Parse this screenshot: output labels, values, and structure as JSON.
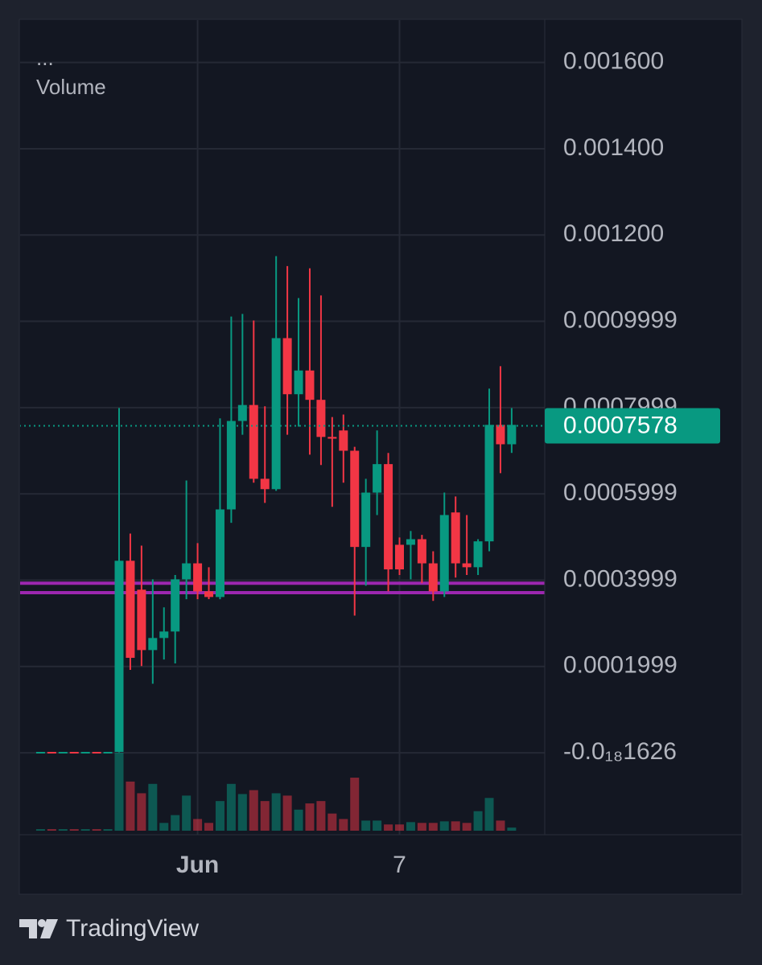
{
  "chart_data": {
    "type": "candlestick",
    "legend_text": "...",
    "volume_name": "Volume",
    "categories": [
      null,
      null,
      null,
      null,
      null,
      null,
      null,
      null,
      null,
      null,
      null,
      null,
      null,
      null,
      "Jun",
      null,
      null,
      null,
      null,
      null,
      null,
      null,
      null,
      null,
      null,
      null,
      null,
      null,
      null,
      null,
      null,
      null,
      "7",
      null,
      null,
      null,
      null,
      null,
      null,
      null,
      null,
      null,
      null
    ],
    "open": [
      1e-06,
      2e-06,
      1e-06,
      2e-06,
      1e-06,
      2e-06,
      1e-06,
      2e-06,
      0.000445,
      0.000378,
      0.000238,
      0.000266,
      0.000281,
      0.000402,
      0.000439,
      0.000374,
      0.000361,
      0.000564,
      0.000769,
      0.000806,
      0.000635,
      0.000611,
      0.000961,
      0.000831,
      0.000886,
      0.000818,
      0.000732,
      0.000747,
      0.0007,
      0.000477,
      0.000603,
      0.000669,
      0.000482,
      0.000482,
      0.000495,
      0.000439,
      0.000374,
      0.000557,
      0.000439,
      0.00043,
      0.00049,
      0.00076,
      0.000715
    ],
    "high": [
      2e-06,
      2e-06,
      2e-06,
      2e-06,
      2e-06,
      2e-06,
      2e-06,
      0.000799,
      0.000508,
      0.00048,
      0.000402,
      0.000337,
      0.000412,
      0.000631,
      0.000486,
      0.00043,
      0.000775,
      0.001011,
      0.001017,
      0.001002,
      0.000803,
      0.001151,
      0.001128,
      0.001054,
      0.001123,
      0.00106,
      0.000778,
      0.000784,
      0.000709,
      0.000635,
      0.000747,
      0.000695,
      0.000499,
      0.000514,
      0.000505,
      0.000467,
      0.000603,
      0.000594,
      0.000551,
      0.000495,
      0.000844,
      0.000896,
      0.000799
    ],
    "low": [
      1e-06,
      1e-06,
      1e-06,
      1e-06,
      1e-06,
      1e-06,
      1e-06,
      1e-06,
      0.000192,
      0.000201,
      0.00016,
      0.000216,
      0.000207,
      0.000356,
      0.000356,
      0.000356,
      0.000356,
      0.000533,
      0.000737,
      0.000626,
      0.000579,
      0.000607,
      0.000737,
      0.000756,
      0.000691,
      0.000667,
      0.00057,
      0.000626,
      0.000318,
      0.000387,
      0.000551,
      0.000374,
      0.000412,
      0.000402,
      0.000393,
      0.000352,
      0.000361,
      0.000406,
      0.000412,
      0.000412,
      0.000467,
      0.000648,
      0.000695
    ],
    "close": [
      2e-06,
      1e-06,
      2e-06,
      1e-06,
      2e-06,
      1e-06,
      2e-06,
      0.000445,
      0.00022,
      0.000238,
      0.000266,
      0.000281,
      0.000402,
      0.000439,
      0.000374,
      0.000361,
      0.000564,
      0.000769,
      0.000806,
      0.000635,
      0.000611,
      0.000961,
      0.000831,
      0.000886,
      0.000818,
      0.000732,
      0.000728,
      0.0007,
      0.000477,
      0.000603,
      0.000669,
      0.000425,
      0.000425,
      0.000495,
      0.000439,
      0.000374,
      0.000551,
      0.000439,
      0.00043,
      0.00049,
      0.00076,
      0.000715,
      0.00076
    ],
    "volume": [
      2,
      2,
      2,
      2,
      2,
      2,
      2,
      100,
      63,
      48,
      60,
      10,
      20,
      45,
      15,
      10,
      38,
      60,
      47,
      52,
      38,
      48,
      45,
      27,
      35,
      38,
      22,
      15,
      68,
      13,
      13,
      8,
      8,
      11,
      10,
      10,
      12,
      12,
      10,
      25,
      42,
      13,
      4
    ],
    "up_color": "#089981",
    "down_color": "#f23645",
    "ylim": [
      -0.00019,
      0.0017
    ],
    "yticks": [
      {
        "value": -1.626e-19,
        "label": "-0.0₁₈1626"
      },
      {
        "value": 0.0002,
        "label": "0.0001999"
      },
      {
        "value": 0.0004,
        "label": "0.0003999"
      },
      {
        "value": 0.0006,
        "label": "0.0005999"
      },
      {
        "value": 0.0008,
        "label": "0.0007999"
      },
      {
        "value": 0.001,
        "label": "0.0009999"
      },
      {
        "value": 0.0012,
        "label": "0.001200"
      },
      {
        "value": 0.0014,
        "label": "0.001400"
      },
      {
        "value": 0.0016,
        "label": "0.001600"
      }
    ],
    "grid": true,
    "hlines": [
      {
        "value": 0.000393,
        "color": "#9c27b0"
      },
      {
        "value": 0.000371,
        "color": "#9c27b0"
      }
    ],
    "last_price": 0.0007578
  },
  "footer": {
    "brand": "TradingView"
  }
}
